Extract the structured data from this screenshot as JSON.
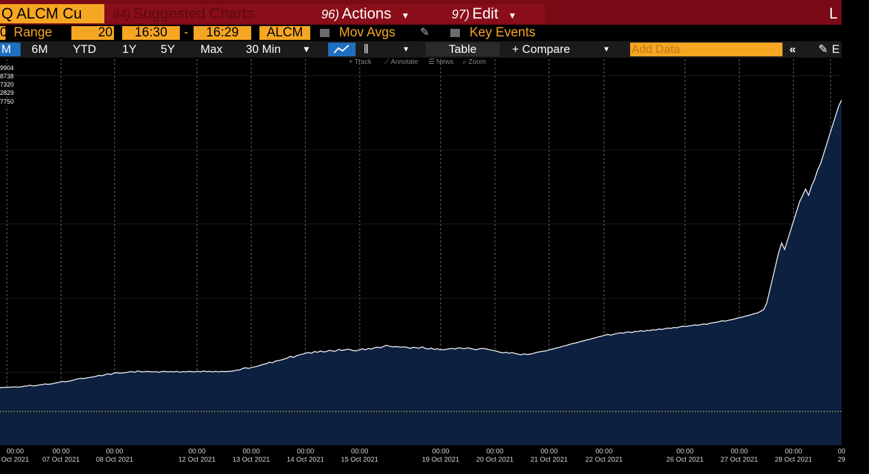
{
  "header": {
    "title": "Q ALCM Cu",
    "suggested": {
      "num": "94)",
      "label": "Suggested Charts"
    },
    "actions": {
      "num": "96)",
      "label": "Actions"
    },
    "edit": {
      "num": "97)",
      "label": "Edit"
    },
    "right": "L"
  },
  "range_bar": {
    "num": "0",
    "range_label": "Range",
    "range_value": "20",
    "start_time": "16:30",
    "dash": "-",
    "end_time": "16:29",
    "ticker": "ALCM",
    "mov_avgs": "Mov Avgs",
    "key_events": "Key Events"
  },
  "toolbar": {
    "periods": [
      "M",
      "6M",
      "YTD",
      "1Y",
      "5Y",
      "Max"
    ],
    "interval": "30 Min",
    "table": "Table",
    "compare": "+ Compare",
    "add_data_placeholder": "Add Data",
    "collapse": "«"
  },
  "tools": [
    "Track",
    "Annotate",
    "News",
    "Zoom"
  ],
  "colors": {
    "accent": "#f5a623",
    "header_red": "#7a0a16",
    "area_fill": "#0e2040",
    "line": "#e8ecf2"
  },
  "legend_values": [
    "9904",
    "8738",
    "7320",
    "2829",
    "7750"
  ],
  "chart_data": {
    "type": "area",
    "series": [
      {
        "values": [
          0.94,
          0.95,
          0.95,
          0.96,
          0.96,
          0.97,
          0.96,
          0.97,
          0.99,
          1.0,
          1.02,
          1.0,
          1.01,
          1.03,
          1.04,
          1.06,
          1.05,
          1.06,
          1.08,
          1.1,
          1.12,
          1.14,
          1.13,
          1.15,
          1.17,
          1.2,
          1.22,
          1.24,
          1.23,
          1.25,
          1.27,
          1.28,
          1.3,
          1.33,
          1.32,
          1.35,
          1.38,
          1.36,
          1.4,
          1.42,
          1.4,
          1.41,
          1.42,
          1.44,
          1.45,
          1.43,
          1.47,
          1.45,
          1.44,
          1.46,
          1.45,
          1.44,
          1.45,
          1.43,
          1.45,
          1.46,
          1.44,
          1.45,
          1.44,
          1.46,
          1.43,
          1.45,
          1.44,
          1.46,
          1.45,
          1.44,
          1.46,
          1.44,
          1.47,
          1.45,
          1.46,
          1.44,
          1.46,
          1.44,
          1.46,
          1.45,
          1.46,
          1.46,
          1.47,
          1.5,
          1.5,
          1.55,
          1.57,
          1.55,
          1.58,
          1.6,
          1.62,
          1.65,
          1.68,
          1.7,
          1.75,
          1.73,
          1.78,
          1.8,
          1.82,
          1.85,
          1.88,
          1.93,
          1.9,
          1.95,
          1.98,
          2.0,
          2.03,
          2.05,
          2.03,
          2.08,
          2.06,
          2.1,
          2.07,
          2.08,
          2.12,
          2.1,
          2.09,
          2.15,
          2.12,
          2.13,
          2.16,
          2.14,
          2.11,
          2.11,
          2.13,
          2.17,
          2.14,
          2.18,
          2.16,
          2.2,
          2.22,
          2.2,
          2.24,
          2.28,
          2.25,
          2.23,
          2.24,
          2.23,
          2.22,
          2.23,
          2.21,
          2.18,
          2.22,
          2.2,
          2.19,
          2.23,
          2.18,
          2.16,
          2.19,
          2.15,
          2.17,
          2.14,
          2.14,
          2.15,
          2.17,
          2.18,
          2.16,
          2.2,
          2.19,
          2.17,
          2.2,
          2.18,
          2.16,
          2.14,
          2.17,
          2.18,
          2.17,
          2.15,
          2.13,
          2.11,
          2.09,
          2.06,
          2.04,
          2.06,
          2.03,
          2.05,
          2.02,
          2.0,
          1.98,
          2.01,
          1.99,
          2.0,
          2.02,
          2.05,
          2.07,
          2.09,
          2.1,
          2.12,
          2.15,
          2.17,
          2.2,
          2.22,
          2.25,
          2.27,
          2.3,
          2.33,
          2.35,
          2.37,
          2.4,
          2.42,
          2.45,
          2.47,
          2.5,
          2.52,
          2.55,
          2.57,
          2.6,
          2.62,
          2.6,
          2.63,
          2.65,
          2.67,
          2.66,
          2.69,
          2.7,
          2.68,
          2.72,
          2.71,
          2.74,
          2.72,
          2.75,
          2.74,
          2.77,
          2.76,
          2.79,
          2.78,
          2.8,
          2.82,
          2.81,
          2.84,
          2.83,
          2.86,
          2.88,
          2.87,
          2.89,
          2.9,
          2.92,
          2.91,
          2.93,
          2.95,
          2.94,
          2.97,
          2.99,
          3.0,
          3.02,
          3.05,
          3.04,
          3.06,
          3.08,
          3.1,
          3.13,
          3.15,
          3.17,
          3.2,
          3.22,
          3.25,
          3.28,
          3.3,
          3.35,
          3.4,
          3.6,
          4.0,
          4.4,
          4.8,
          5.2,
          5.5,
          5.3,
          5.6,
          5.9,
          6.2,
          6.5,
          6.8,
          7.0,
          7.2,
          7.0,
          7.3,
          7.5,
          7.8,
          8.0,
          8.3,
          8.6,
          8.9,
          9.2,
          9.5,
          9.8,
          10.0
        ]
      }
    ]
  },
  "x_labels": [
    {
      "time": "00:00",
      "date": "Oct 2021"
    },
    {
      "time": "00:00",
      "date": "07 Oct 2021"
    },
    {
      "time": "00:00",
      "date": "08 Oct 2021"
    },
    {
      "time": "00:00",
      "date": "12 Oct 2021"
    },
    {
      "time": "00:00",
      "date": "13 Oct 2021"
    },
    {
      "time": "00:00",
      "date": "14 Oct 2021"
    },
    {
      "time": "00:00",
      "date": "15 Oct 2021"
    },
    {
      "time": "00:00",
      "date": "19 Oct 2021"
    },
    {
      "time": "00:00",
      "date": "20 Oct 2021"
    },
    {
      "time": "00:00",
      "date": "21 Oct 2021"
    },
    {
      "time": "00:00",
      "date": "22 Oct 2021"
    },
    {
      "time": "00:00",
      "date": "26 Oct 2021"
    },
    {
      "time": "00:00",
      "date": "27 Oct 2021"
    },
    {
      "time": "00:00",
      "date": "28 Oct 2021"
    },
    {
      "time": "00",
      "date": "29"
    }
  ]
}
